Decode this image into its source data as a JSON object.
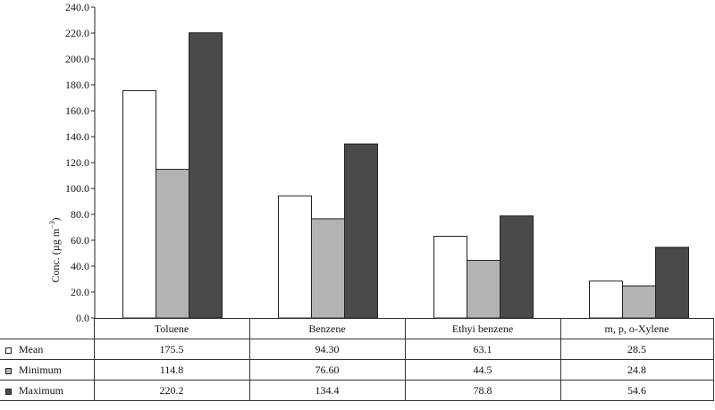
{
  "chart_data": {
    "type": "bar",
    "title": "",
    "xlabel": "",
    "ylabel": "Conc. (µg m",
    "ylabel_sup": "−3",
    "ylabel_tail": ")",
    "ylim": [
      0,
      240
    ],
    "yticks": [
      "0.0",
      "20.0",
      "40.0",
      "60.0",
      "80.0",
      "100.0",
      "120.0",
      "140.0",
      "160.0",
      "180.0",
      "200.0",
      "220.0",
      "240.0"
    ],
    "categories": [
      "Toluene",
      "Benzene",
      "Ethyi benzene",
      "m, p, o-Xylene"
    ],
    "series": [
      {
        "name": "Mean",
        "values": [
          175.5,
          94.3,
          63.1,
          28.5
        ],
        "labels": [
          "175.5",
          "94.30",
          "63.1",
          "28.5"
        ],
        "color": "#ffffff"
      },
      {
        "name": "Minimum",
        "values": [
          114.8,
          76.6,
          44.5,
          24.8
        ],
        "labels": [
          "114.8",
          "76.60",
          "44.5",
          "24.8"
        ],
        "color": "#b3b3b3"
      },
      {
        "name": "Maximum",
        "values": [
          220.2,
          134.4,
          78.8,
          54.6
        ],
        "labels": [
          "220.2",
          "134.4",
          "78.8",
          "54.6"
        ],
        "color": "#4a4a4a"
      }
    ],
    "legend_placement": "data-table-rows",
    "grid": false
  }
}
